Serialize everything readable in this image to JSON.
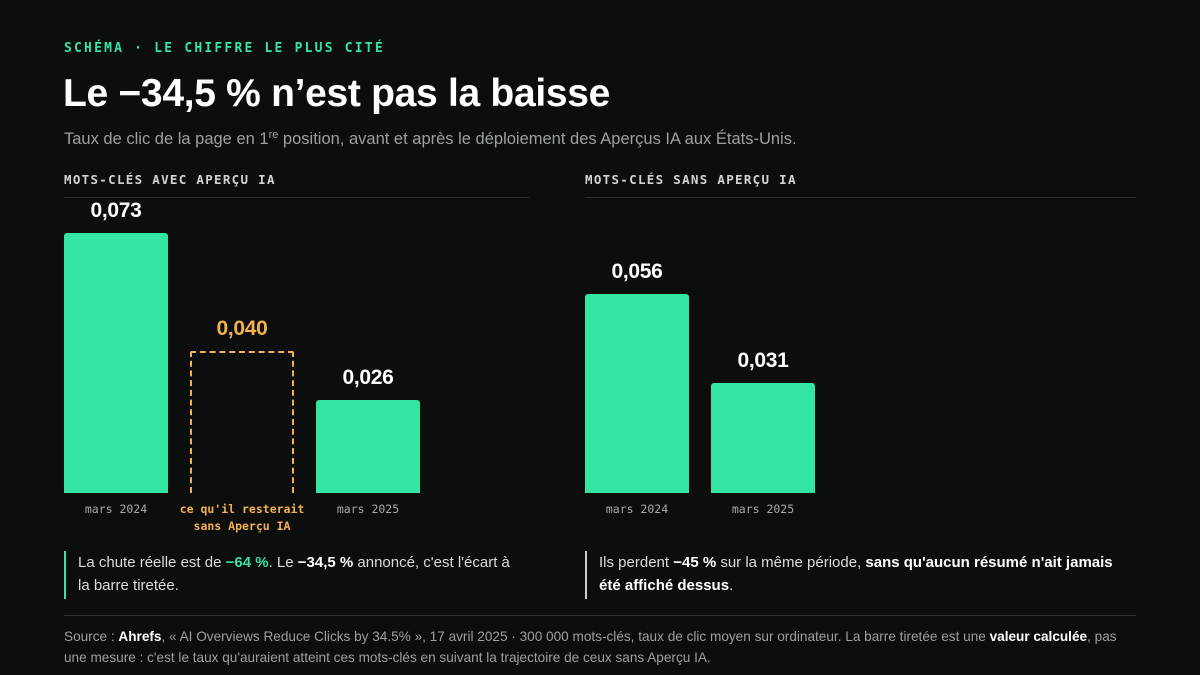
{
  "eyebrow": "SCHÉMA · LE CHIFFRE LE PLUS CITÉ",
  "title": "Le −34,5 % n’est pas la baisse",
  "subtitle": {
    "before": "Taux de clic de la page en 1",
    "sup": "re",
    "after": " position, avant et après le déploiement des Aperçus IA aux États-Unis."
  },
  "colors": {
    "accent": "#35e5a4",
    "counterfactual": "#f3b04f",
    "background": "#0b0e0d"
  },
  "chart_data": [
    {
      "type": "bar",
      "title": "MOTS-CLÉS AVEC APERÇU IA",
      "categories": [
        "mars 2024",
        "ce qu'il resterait sans Aperçu IA",
        "mars 2025"
      ],
      "category_lines": [
        [
          "mars 2024"
        ],
        [
          "ce qu'il resterait",
          "sans Aperçu IA"
        ],
        [
          "mars 2025"
        ]
      ],
      "values": [
        0.073,
        0.04,
        0.026
      ],
      "value_labels": [
        "0,073",
        "0,040",
        "0,026"
      ],
      "styles": [
        "solid",
        "dashed",
        "solid"
      ],
      "ylim": [
        0,
        0.073
      ],
      "grid": false
    },
    {
      "type": "bar",
      "title": "MOTS-CLÉS SANS APERÇU IA",
      "categories": [
        "mars 2024",
        "mars 2025"
      ],
      "category_lines": [
        [
          "mars 2024"
        ],
        [
          "mars 2025"
        ]
      ],
      "values": [
        0.056,
        0.031
      ],
      "value_labels": [
        "0,056",
        "0,031"
      ],
      "styles": [
        "solid",
        "solid"
      ],
      "ylim": [
        0,
        0.073
      ],
      "grid": false
    }
  ],
  "notes": {
    "left": {
      "t1": "La chute réelle est de ",
      "b1": "−64 %",
      "t2": ". Le ",
      "b2": "−34,5 %",
      "t3": " annoncé, c'est l'écart à la barre tiretée."
    },
    "right": {
      "t1": "Ils perdent ",
      "b1": "−45 %",
      "t2": " sur la même période, ",
      "b2": "sans qu'aucun résumé n'ait jamais été affiché dessus",
      "t3": "."
    }
  },
  "source": {
    "t1": "Source : ",
    "b1": "Ahrefs",
    "t2": ", « AI Overviews Reduce Clicks by 34.5% », 17 avril 2025 · 300 000 mots-clés, taux de clic moyen sur ordinateur. La barre tiretée est une ",
    "b2": "valeur calculée",
    "t3": ", pas une mesure : c'est le taux qu'auraient atteint ces mots-clés en suivant la trajectoire de ceux sans Aperçu IA."
  }
}
